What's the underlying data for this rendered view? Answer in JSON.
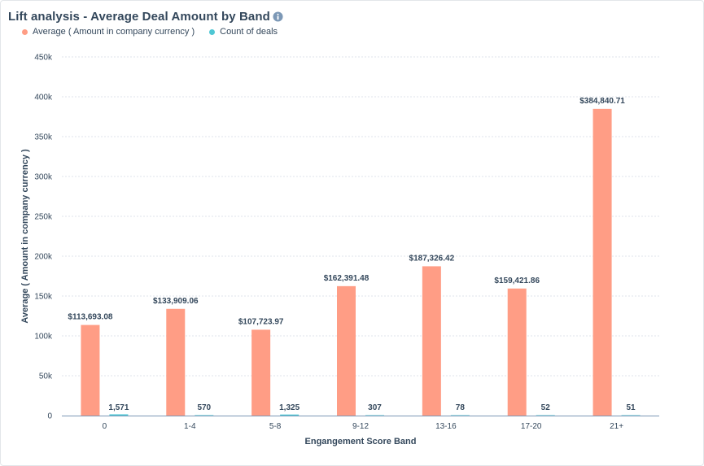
{
  "title": "Lift analysis - Average Deal Amount by Band",
  "icons": {
    "info": "info-icon"
  },
  "colors": {
    "series_average": "#ff9d85",
    "series_count": "#4fc7d4",
    "text": "#33475b",
    "grid": "#dfe3eb"
  },
  "chart_data": {
    "type": "bar",
    "title": "Lift analysis - Average Deal Amount by Band",
    "xlabel": "Engangement Score Band",
    "ylabel": "Average ( Amount in company currency )",
    "ylim": [
      0,
      450000
    ],
    "yticks": [
      0,
      50000,
      100000,
      150000,
      200000,
      250000,
      300000,
      350000,
      400000,
      450000
    ],
    "ytick_labels": [
      "0",
      "50k",
      "100k",
      "150k",
      "200k",
      "250k",
      "300k",
      "350k",
      "400k",
      "450k"
    ],
    "grid": true,
    "legend_position": "top-left",
    "categories": [
      "0",
      "1-4",
      "5-8",
      "9-12",
      "13-16",
      "17-20",
      "21+"
    ],
    "series": [
      {
        "name": "Average ( Amount in company currency )",
        "color": "#ff9d85",
        "values": [
          113693.08,
          133909.06,
          107723.97,
          162391.48,
          187326.42,
          159421.86,
          384840.71
        ],
        "labels": [
          "$113,693.08",
          "$133,909.06",
          "$107,723.97",
          "$162,391.48",
          "$187,326.42",
          "$159,421.86",
          "$384,840.71"
        ]
      },
      {
        "name": "Count of deals",
        "color": "#4fc7d4",
        "values": [
          1571,
          570,
          1325,
          307,
          78,
          52,
          51
        ],
        "labels": [
          "1,571",
          "570",
          "1,325",
          "307",
          "78",
          "52",
          "51"
        ]
      }
    ]
  }
}
